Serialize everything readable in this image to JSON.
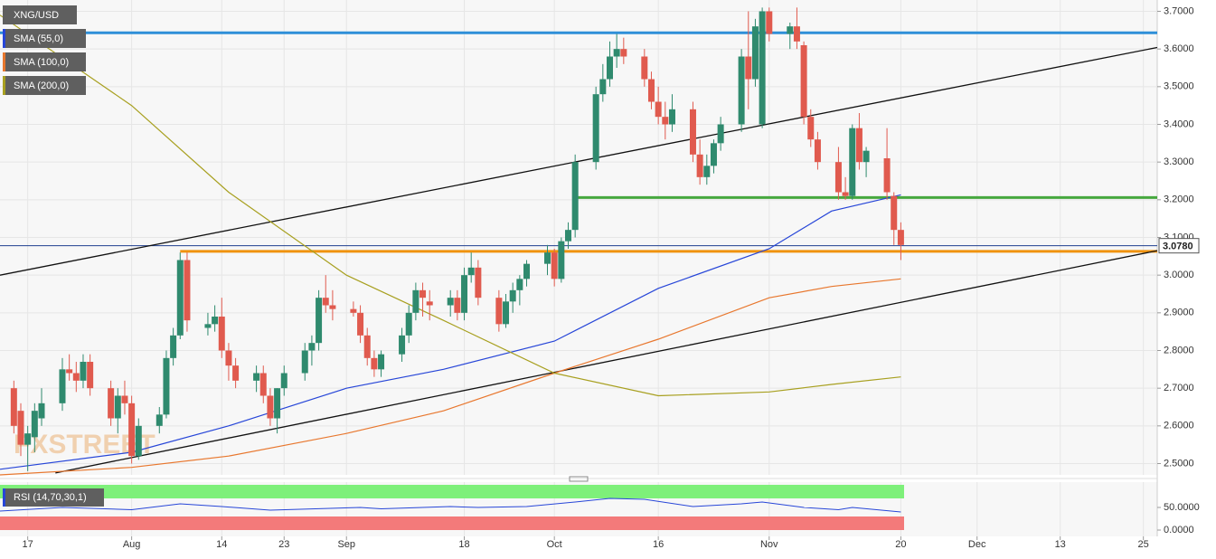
{
  "chart_data": {
    "type": "candlestick",
    "symbol": "XNG/USD",
    "watermark": "FXSTREET",
    "xlim": [
      "07-13",
      "12-27"
    ],
    "xticks": [
      {
        "value": "07-17",
        "label": "17"
      },
      {
        "value": "08-01",
        "label": "Aug"
      },
      {
        "value": "08-14",
        "label": "14"
      },
      {
        "value": "08-23",
        "label": "23"
      },
      {
        "value": "09-01",
        "label": "Sep"
      },
      {
        "value": "09-18",
        "label": "18"
      },
      {
        "value": "10-01",
        "label": "Oct"
      },
      {
        "value": "10-16",
        "label": "16"
      },
      {
        "value": "11-01",
        "label": "Nov"
      },
      {
        "value": "11-20",
        "label": "20"
      },
      {
        "value": "12-01",
        "label": "Dec"
      },
      {
        "value": "12-13",
        "label": "13"
      },
      {
        "value": "12-25",
        "label": "25"
      }
    ],
    "ylim": [
      2.47,
      3.73
    ],
    "yticks": [
      {
        "value": 2.5,
        "label": "2.5000"
      },
      {
        "value": 2.6,
        "label": "2.6000"
      },
      {
        "value": 2.7,
        "label": "2.7000"
      },
      {
        "value": 2.8,
        "label": "2.8000"
      },
      {
        "value": 2.9,
        "label": "2.9000"
      },
      {
        "value": 3.0,
        "label": "3.0000"
      },
      {
        "value": 3.1,
        "label": "3.1000"
      },
      {
        "value": 3.2,
        "label": "3.2000"
      },
      {
        "value": 3.3,
        "label": "3.3000"
      },
      {
        "value": 3.4,
        "label": "3.4000"
      },
      {
        "value": 3.5,
        "label": "3.5000"
      },
      {
        "value": 3.6,
        "label": "3.6000"
      },
      {
        "value": 3.7,
        "label": "3.7000"
      }
    ],
    "grid": true,
    "up_color": "#2f8a6e",
    "down_color": "#e05a4e",
    "last_price": {
      "value": 3.078,
      "label": "3.0780",
      "color": "#1f3f8f"
    },
    "candles": {
      "x": [
        "07-15",
        "07-16",
        "07-17",
        "07-18",
        "07-19",
        "07-22",
        "07-23",
        "07-24",
        "07-25",
        "07-26",
        "07-29",
        "07-30",
        "07-31",
        "08-01",
        "08-02",
        "08-05",
        "08-06",
        "08-07",
        "08-08",
        "08-09",
        "08-12",
        "08-13",
        "08-14",
        "08-15",
        "08-16",
        "08-19",
        "08-20",
        "08-21",
        "08-22",
        "08-23",
        "08-26",
        "08-27",
        "08-28",
        "08-29",
        "08-30",
        "09-02",
        "09-03",
        "09-04",
        "09-05",
        "09-06",
        "09-09",
        "09-10",
        "09-11",
        "09-12",
        "09-13",
        "09-16",
        "09-17",
        "09-18",
        "09-19",
        "09-20",
        "09-23",
        "09-24",
        "09-25",
        "09-26",
        "09-27",
        "09-30",
        "10-01",
        "10-02",
        "10-03",
        "10-04",
        "10-07",
        "10-08",
        "10-09",
        "10-10",
        "10-11",
        "10-14",
        "10-15",
        "10-16",
        "10-17",
        "10-18",
        "10-21",
        "10-22",
        "10-23",
        "10-24",
        "10-25",
        "10-28",
        "10-29",
        "10-30",
        "10-31",
        "11-01",
        "11-04",
        "11-05",
        "11-06",
        "11-07",
        "11-08",
        "11-11",
        "11-12",
        "11-13",
        "11-14",
        "11-15",
        "11-18",
        "11-19",
        "11-20"
      ],
      "open": [
        2.7,
        2.64,
        2.55,
        2.57,
        2.62,
        2.66,
        2.75,
        2.74,
        2.72,
        2.77,
        2.7,
        2.62,
        2.68,
        2.66,
        2.52,
        2.6,
        2.63,
        2.78,
        2.84,
        3.04,
        2.86,
        2.87,
        2.89,
        2.8,
        2.76,
        2.72,
        2.74,
        2.68,
        2.62,
        2.7,
        2.74,
        2.8,
        2.82,
        2.94,
        2.92,
        2.91,
        2.9,
        2.84,
        2.78,
        2.75,
        2.79,
        2.84,
        2.9,
        2.96,
        2.93,
        2.92,
        2.94,
        2.9,
        3.0,
        3.02,
        2.94,
        2.87,
        2.93,
        2.96,
        2.99,
        3.03,
        3.06,
        2.99,
        3.09,
        3.12,
        3.3,
        3.48,
        3.52,
        3.58,
        3.6,
        3.58,
        3.52,
        3.46,
        3.42,
        3.4,
        3.44,
        3.32,
        3.26,
        3.29,
        3.35,
        3.4,
        3.58,
        3.52,
        3.4,
        3.7,
        3.64,
        3.66,
        3.61,
        3.42,
        3.36,
        3.3,
        3.22,
        3.21,
        3.39,
        3.3,
        3.31,
        3.21,
        3.12
      ],
      "high": [
        2.72,
        2.66,
        2.6,
        2.66,
        2.7,
        2.78,
        2.79,
        2.77,
        2.79,
        2.79,
        2.72,
        2.7,
        2.72,
        2.68,
        2.62,
        2.65,
        2.8,
        2.86,
        3.06,
        3.06,
        2.9,
        2.92,
        2.94,
        2.82,
        2.78,
        2.76,
        2.76,
        2.7,
        2.7,
        2.76,
        2.82,
        2.84,
        2.96,
        3.0,
        2.96,
        2.93,
        2.92,
        2.86,
        2.8,
        2.8,
        2.86,
        2.92,
        2.98,
        2.98,
        2.96,
        2.96,
        2.96,
        3.02,
        3.06,
        3.04,
        2.96,
        2.95,
        2.98,
        3.0,
        3.04,
        3.08,
        3.07,
        3.1,
        3.14,
        3.32,
        3.5,
        3.56,
        3.62,
        3.64,
        3.63,
        3.6,
        3.54,
        3.5,
        3.46,
        3.48,
        3.46,
        3.36,
        3.32,
        3.36,
        3.42,
        3.6,
        3.7,
        3.68,
        3.71,
        3.71,
        3.67,
        3.71,
        3.62,
        3.44,
        3.38,
        3.34,
        3.26,
        3.4,
        3.43,
        3.34,
        3.39,
        3.22,
        3.14
      ],
      "low": [
        2.58,
        2.52,
        2.48,
        2.53,
        2.6,
        2.64,
        2.72,
        2.69,
        2.7,
        2.68,
        2.6,
        2.58,
        2.63,
        2.5,
        2.51,
        2.58,
        2.62,
        2.76,
        2.83,
        2.85,
        2.84,
        2.85,
        2.78,
        2.72,
        2.7,
        2.69,
        2.66,
        2.6,
        2.58,
        2.68,
        2.72,
        2.76,
        2.8,
        2.9,
        2.88,
        2.89,
        2.82,
        2.76,
        2.73,
        2.73,
        2.77,
        2.82,
        2.88,
        2.89,
        2.88,
        2.89,
        2.88,
        2.88,
        2.98,
        2.92,
        2.85,
        2.86,
        2.9,
        2.92,
        2.97,
        3.0,
        2.97,
        2.98,
        3.07,
        3.1,
        3.28,
        3.46,
        3.5,
        3.55,
        3.56,
        3.5,
        3.44,
        3.4,
        3.36,
        3.38,
        3.3,
        3.24,
        3.24,
        3.27,
        3.33,
        3.38,
        3.44,
        3.5,
        3.39,
        3.62,
        3.6,
        3.6,
        3.4,
        3.34,
        3.28,
        3.2,
        3.2,
        3.2,
        3.28,
        3.26,
        3.2,
        3.08,
        3.04
      ],
      "close": [
        2.6,
        2.55,
        2.58,
        2.64,
        2.66,
        2.75,
        2.74,
        2.72,
        2.77,
        2.7,
        2.62,
        2.68,
        2.66,
        2.52,
        2.6,
        2.63,
        2.78,
        2.84,
        3.04,
        2.88,
        2.87,
        2.89,
        2.8,
        2.76,
        2.72,
        2.74,
        2.68,
        2.62,
        2.7,
        2.74,
        2.8,
        2.82,
        2.94,
        2.92,
        2.91,
        2.9,
        2.84,
        2.78,
        2.75,
        2.79,
        2.84,
        2.9,
        2.96,
        2.94,
        2.92,
        2.94,
        2.9,
        3.0,
        3.02,
        2.94,
        2.87,
        2.93,
        2.96,
        2.99,
        3.03,
        3.06,
        2.99,
        3.09,
        3.12,
        3.3,
        3.48,
        3.52,
        3.58,
        3.6,
        3.58,
        3.52,
        3.46,
        3.42,
        3.4,
        3.44,
        3.32,
        3.26,
        3.29,
        3.35,
        3.4,
        3.58,
        3.52,
        3.66,
        3.7,
        3.64,
        3.66,
        3.62,
        3.42,
        3.36,
        3.3,
        3.22,
        3.21,
        3.39,
        3.3,
        3.33,
        3.22,
        3.12,
        3.08
      ]
    },
    "series": [
      {
        "name": "SMA (55,0)",
        "color": "#2746d8",
        "x": [
          "07-13",
          "08-01",
          "08-15",
          "09-01",
          "09-15",
          "10-01",
          "10-16",
          "11-01",
          "11-10",
          "11-20"
        ],
        "values": [
          2.485,
          2.53,
          2.6,
          2.7,
          2.75,
          2.825,
          2.965,
          3.07,
          3.17,
          3.213
        ]
      },
      {
        "name": "SMA (100,0)",
        "color": "#e8772e",
        "x": [
          "07-13",
          "08-01",
          "08-15",
          "09-01",
          "09-15",
          "10-01",
          "10-16",
          "11-01",
          "11-10",
          "11-20"
        ],
        "values": [
          2.47,
          2.49,
          2.52,
          2.58,
          2.64,
          2.74,
          2.83,
          2.94,
          2.97,
          2.99
        ]
      },
      {
        "name": "SMA (200,0)",
        "color": "#a8a020",
        "x": [
          "07-13",
          "08-01",
          "08-15",
          "09-01",
          "09-15",
          "10-01",
          "10-16",
          "11-01",
          "11-10",
          "11-20"
        ],
        "values": [
          3.69,
          3.45,
          3.22,
          3.0,
          2.88,
          2.74,
          2.68,
          2.69,
          2.71,
          2.73
        ]
      }
    ],
    "levels": [
      {
        "value": 3.643,
        "from": "07-13",
        "color": "#2e8fd8"
      },
      {
        "value": 3.206,
        "from": "10-04",
        "color": "#46a83e"
      },
      {
        "value": 3.063,
        "from": "08-08",
        "color": "#f0930e"
      }
    ],
    "trendlines": [
      {
        "x": [
          "07-13",
          "12-27"
        ],
        "values": [
          3.0,
          3.604
        ],
        "color": "#111111"
      },
      {
        "x": [
          "07-21",
          "12-27"
        ],
        "values": [
          2.475,
          3.065
        ],
        "color": "#111111"
      }
    ],
    "rsi": {
      "name": "RSI (14,70,30,1)",
      "color": "#2746d8",
      "ylim": [
        0,
        100
      ],
      "yticks": [
        {
          "value": 50,
          "label": "50.0000"
        },
        {
          "value": 0,
          "label": "0.0000"
        }
      ],
      "overbought": 70,
      "oversold": 30,
      "x": [
        "07-13",
        "07-22",
        "08-01",
        "08-08",
        "08-14",
        "08-21",
        "09-03",
        "09-06",
        "09-16",
        "09-20",
        "09-27",
        "10-04",
        "10-09",
        "10-14",
        "10-21",
        "10-28",
        "10-31",
        "11-06",
        "11-11",
        "11-13",
        "11-20"
      ],
      "values": [
        42,
        50,
        45,
        58,
        52,
        44,
        50,
        47,
        52,
        50,
        52,
        62,
        70,
        68,
        52,
        58,
        62,
        50,
        45,
        50,
        40
      ]
    }
  }
}
